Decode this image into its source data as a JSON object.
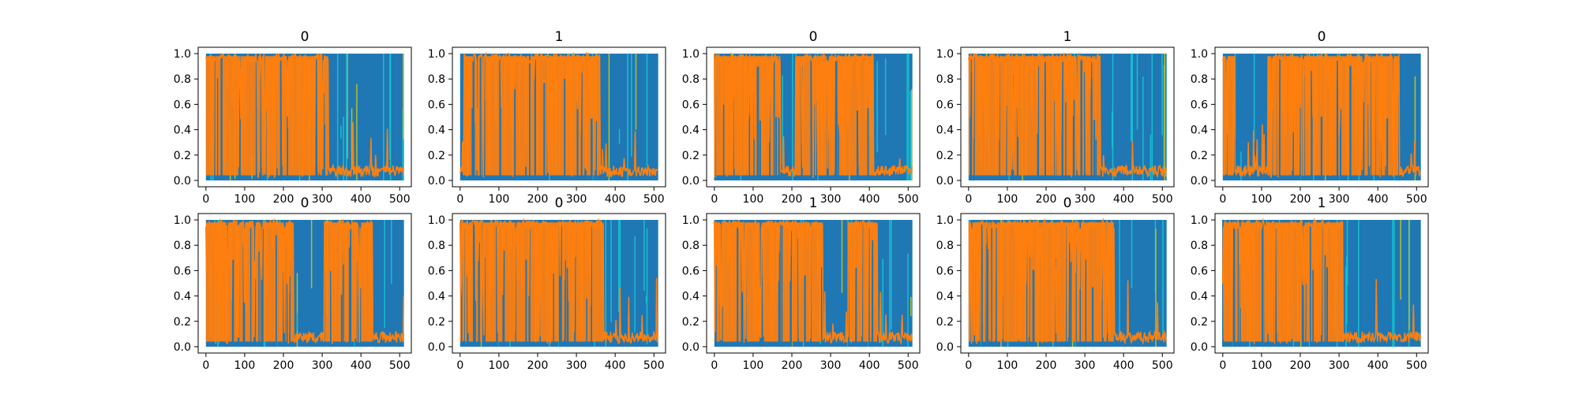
{
  "figure": {
    "background": "#ffffff",
    "colors": {
      "blue": "#1f77b4",
      "orange": "#ff7f0e",
      "cyan": "#17becf",
      "olive": "#bcbd22",
      "axes": "#000000"
    }
  },
  "chart_data": [
    {
      "type": "area",
      "title": "0",
      "xlim": [
        -20,
        530
      ],
      "ylim": [
        -0.05,
        1.05
      ],
      "xticks": [
        0,
        100,
        200,
        300,
        400,
        500
      ],
      "yticks": [
        0.0,
        0.2,
        0.4,
        0.6,
        0.8,
        1.0
      ],
      "xlabel": "",
      "ylabel": "",
      "series_colors": [
        "#1f77b4",
        "#ff7f0e",
        "#17becf",
        "#bcbd22"
      ],
      "orange_high_ranges": [
        [
          0,
          315
        ]
      ]
    },
    {
      "type": "area",
      "title": "1",
      "xlim": [
        -20,
        530
      ],
      "ylim": [
        -0.05,
        1.05
      ],
      "xticks": [
        0,
        100,
        200,
        300,
        400,
        500
      ],
      "yticks": [
        0.0,
        0.2,
        0.4,
        0.6,
        0.8,
        1.0
      ],
      "xlabel": "",
      "ylabel": "",
      "series_colors": [
        "#1f77b4",
        "#ff7f0e",
        "#17becf",
        "#bcbd22"
      ],
      "orange_high_ranges": [
        [
          10,
          360
        ]
      ]
    },
    {
      "type": "area",
      "title": "0",
      "xlim": [
        -20,
        530
      ],
      "ylim": [
        -0.05,
        1.05
      ],
      "xticks": [
        0,
        100,
        200,
        300,
        400,
        500
      ],
      "yticks": [
        0.0,
        0.2,
        0.4,
        0.6,
        0.8,
        1.0
      ],
      "xlabel": "",
      "ylabel": "",
      "series_colors": [
        "#1f77b4",
        "#ff7f0e",
        "#17becf",
        "#bcbd22"
      ],
      "orange_high_ranges": [
        [
          0,
          170
        ],
        [
          210,
          410
        ]
      ]
    },
    {
      "type": "area",
      "title": "1",
      "xlim": [
        -20,
        530
      ],
      "ylim": [
        -0.05,
        1.05
      ],
      "xticks": [
        0,
        100,
        200,
        300,
        400,
        500
      ],
      "yticks": [
        0.0,
        0.2,
        0.4,
        0.6,
        0.8,
        1.0
      ],
      "xlabel": "",
      "ylabel": "",
      "series_colors": [
        "#1f77b4",
        "#ff7f0e",
        "#17becf",
        "#bcbd22"
      ],
      "orange_high_ranges": [
        [
          0,
          340
        ]
      ]
    },
    {
      "type": "area",
      "title": "0",
      "xlim": [
        -20,
        530
      ],
      "ylim": [
        -0.05,
        1.05
      ],
      "xticks": [
        0,
        100,
        200,
        300,
        400,
        500
      ],
      "yticks": [
        0.0,
        0.2,
        0.4,
        0.6,
        0.8,
        1.0
      ],
      "xlabel": "",
      "ylabel": "",
      "series_colors": [
        "#1f77b4",
        "#ff7f0e",
        "#17becf",
        "#bcbd22"
      ],
      "orange_high_ranges": [
        [
          0,
          30
        ],
        [
          115,
          455
        ]
      ]
    },
    {
      "type": "area",
      "title": "0",
      "xlim": [
        -20,
        530
      ],
      "ylim": [
        -0.05,
        1.05
      ],
      "xticks": [
        0,
        100,
        200,
        300,
        400,
        500
      ],
      "yticks": [
        0.0,
        0.2,
        0.4,
        0.6,
        0.8,
        1.0
      ],
      "xlabel": "",
      "ylabel": "",
      "series_colors": [
        "#1f77b4",
        "#ff7f0e",
        "#17becf",
        "#bcbd22"
      ],
      "orange_high_ranges": [
        [
          0,
          225
        ],
        [
          305,
          430
        ]
      ]
    },
    {
      "type": "area",
      "title": "0",
      "xlim": [
        -20,
        530
      ],
      "ylim": [
        -0.05,
        1.05
      ],
      "xticks": [
        0,
        100,
        200,
        300,
        400,
        500
      ],
      "yticks": [
        0.0,
        0.2,
        0.4,
        0.6,
        0.8,
        1.0
      ],
      "xlabel": "",
      "ylabel": "",
      "series_colors": [
        "#1f77b4",
        "#ff7f0e",
        "#17becf",
        "#bcbd22"
      ],
      "orange_high_ranges": [
        [
          0,
          370
        ]
      ]
    },
    {
      "type": "area",
      "title": "1",
      "xlim": [
        -20,
        530
      ],
      "ylim": [
        -0.05,
        1.05
      ],
      "xticks": [
        0,
        100,
        200,
        300,
        400,
        500
      ],
      "yticks": [
        0.0,
        0.2,
        0.4,
        0.6,
        0.8,
        1.0
      ],
      "xlabel": "",
      "ylabel": "",
      "series_colors": [
        "#1f77b4",
        "#ff7f0e",
        "#17becf",
        "#bcbd22"
      ],
      "orange_high_ranges": [
        [
          0,
          280
        ],
        [
          345,
          420
        ]
      ]
    },
    {
      "type": "area",
      "title": "0",
      "xlim": [
        -20,
        530
      ],
      "ylim": [
        -0.05,
        1.05
      ],
      "xticks": [
        0,
        100,
        200,
        300,
        400,
        500
      ],
      "yticks": [
        0.0,
        0.2,
        0.4,
        0.6,
        0.8,
        1.0
      ],
      "xlabel": "",
      "ylabel": "",
      "series_colors": [
        "#1f77b4",
        "#ff7f0e",
        "#17becf",
        "#bcbd22"
      ],
      "orange_high_ranges": [
        [
          0,
          375
        ]
      ]
    },
    {
      "type": "area",
      "title": "1",
      "xlim": [
        -20,
        530
      ],
      "ylim": [
        -0.05,
        1.05
      ],
      "xticks": [
        0,
        100,
        200,
        300,
        400,
        500
      ],
      "yticks": [
        0.0,
        0.2,
        0.4,
        0.6,
        0.8,
        1.0
      ],
      "xlabel": "",
      "ylabel": "",
      "series_colors": [
        "#1f77b4",
        "#ff7f0e",
        "#17becf",
        "#bcbd22"
      ],
      "orange_high_ranges": [
        [
          0,
          310
        ]
      ]
    }
  ]
}
